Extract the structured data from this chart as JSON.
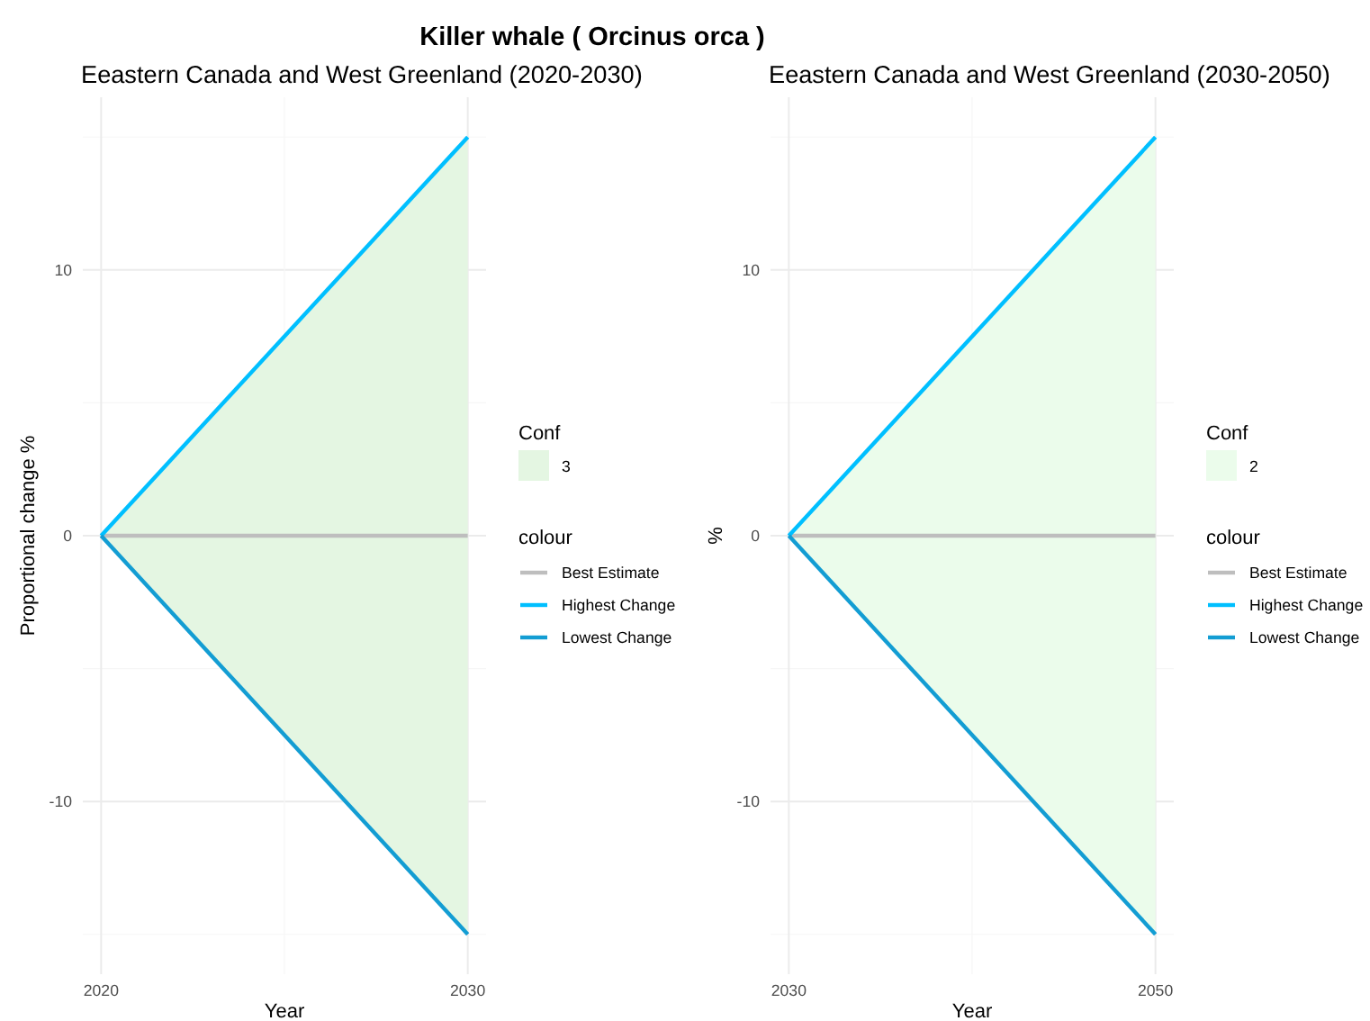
{
  "chart_data": [
    {
      "type": "line",
      "title": "Killer whale ( Orcinus orca )",
      "subtitle": "Eeastern Canada and West Greenland (2020-2030)",
      "xlabel": "Year",
      "ylabel": "Proportional change %",
      "x": [
        2020,
        2030
      ],
      "xlim": [
        2019.5,
        2030.5
      ],
      "xticks": [
        2020,
        {
          "value": 2025,
          "label": null
        },
        2030
      ],
      "ylim": [
        -16.5,
        16.5
      ],
      "yticks": [
        {
          "value": -15,
          "label": null
        },
        -10,
        {
          "value": -5,
          "label": null
        },
        0,
        {
          "value": 5,
          "label": null
        },
        10,
        {
          "value": 15,
          "label": null
        }
      ],
      "grid": true,
      "legend": "right",
      "legend_title": "colour",
      "annotations": [
        "Conf"
      ],
      "series": [
        {
          "name": "3",
          "type": "area",
          "color": "#e4f6e2",
          "values": [
            null,
            null
          ],
          "lower": [
            0,
            -15
          ],
          "upper": [
            0,
            15
          ]
        },
        {
          "name": "Best Estimate",
          "color": "#bebebe",
          "values": [
            0,
            0
          ]
        },
        {
          "name": "Highest Change",
          "color": "#00bfff",
          "values": [
            0,
            15
          ]
        },
        {
          "name": "Lowest Change",
          "color": "#139dd3",
          "values": [
            0,
            -15
          ]
        }
      ]
    },
    {
      "type": "line",
      "subtitle": "Eeastern Canada and West Greenland (2030-2050)",
      "xlabel": "Year",
      "ylabel": "%",
      "x": [
        2030,
        2050
      ],
      "xlim": [
        2029,
        2051
      ],
      "xticks": [
        2030,
        {
          "value": 2040,
          "label": null
        },
        2050
      ],
      "ylim": [
        -16.5,
        16.5
      ],
      "yticks": [
        {
          "value": -15,
          "label": null
        },
        -10,
        {
          "value": -5,
          "label": null
        },
        0,
        {
          "value": 5,
          "label": null
        },
        10,
        {
          "value": 15,
          "label": null
        }
      ],
      "grid": true,
      "legend": "right",
      "legend_title": "colour",
      "annotations": [
        "Conf"
      ],
      "series": [
        {
          "name": "2",
          "type": "area",
          "color": "#ebfceb",
          "values": [
            null,
            null
          ],
          "lower": [
            0,
            -15
          ],
          "upper": [
            0,
            15
          ]
        },
        {
          "name": "Best Estimate",
          "color": "#bebebe",
          "values": [
            0,
            0
          ]
        },
        {
          "name": "Highest Change",
          "color": "#00bfff",
          "values": [
            0,
            15
          ]
        },
        {
          "name": "Lowest Change",
          "color": "#139dd3",
          "values": [
            0,
            -15
          ]
        }
      ]
    }
  ]
}
